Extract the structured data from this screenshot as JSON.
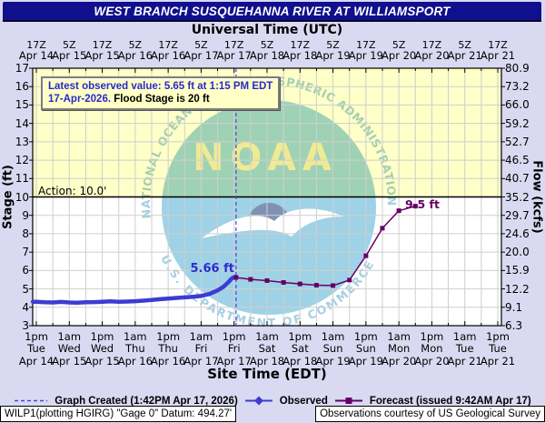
{
  "header": {
    "title": "WEST BRANCH SUSQUEHANNA RIVER AT WILLIAMSPORT"
  },
  "top_axis": {
    "title": "Universal Time (UTC)"
  },
  "bottom_axis": {
    "title": "Site Time (EDT)"
  },
  "y_left_title": "Stage (ft)",
  "y_right_title": "Flow (kcfs)",
  "callout": {
    "line1": "Latest observed value: 5.65 ft at 1:15 PM EDT",
    "date": "17-Apr-2026.",
    "flood_note": "Flood Stage is 20 ft"
  },
  "action_label": "Action: 10.0'",
  "observed_peak_label": "5.66 ft",
  "forecast_peak_label": "9.5 ft",
  "legend": {
    "graph_created": "Graph Created (1:42PM Apr 17, 2026)",
    "observed": "Observed",
    "forecast": "Forecast (issued 9:42AM Apr 17)"
  },
  "footer": {
    "station": "WILP1(plotting HGIRG) \"Gage 0\" Datum: 494.27'",
    "courtesy": "Observations courtesy of US Geological Survey"
  },
  "watermark": {
    "ring_top": "NATIONAL OCEANIC AND ATMOSPHERIC ADMINISTRATION",
    "acronym": "NOAA",
    "ring_bottom": "U.S. DEPARTMENT OF COMMERCE"
  },
  "chart_data": {
    "type": "line",
    "title": "WEST BRANCH SUSQUEHANNA RIVER AT WILLIAMSPORT",
    "x_total_hours": 168,
    "x_hours_per_tick": 12,
    "x_ticks": {
      "utc_time": [
        "17Z",
        "5Z",
        "17Z",
        "5Z",
        "17Z",
        "5Z",
        "17Z",
        "5Z",
        "17Z",
        "5Z",
        "17Z",
        "5Z",
        "17Z",
        "5Z",
        "17Z"
      ],
      "utc_date": [
        "Apr 14",
        "Apr 15",
        "Apr 15",
        "Apr 16",
        "Apr 16",
        "Apr 17",
        "Apr 17",
        "Apr 18",
        "Apr 18",
        "Apr 19",
        "Apr 19",
        "Apr 20",
        "Apr 20",
        "Apr 21",
        "Apr 21"
      ],
      "site_time": [
        "1pm",
        "1am",
        "1pm",
        "1am",
        "1pm",
        "1am",
        "1pm",
        "1am",
        "1pm",
        "1am",
        "1pm",
        "1am",
        "1pm",
        "1am",
        "1pm"
      ],
      "site_day": [
        "Tue",
        "Wed",
        "Wed",
        "Thu",
        "Thu",
        "Fri",
        "Fri",
        "Sat",
        "Sat",
        "Sun",
        "Sun",
        "Mon",
        "Mon",
        "Tue",
        "Tue"
      ],
      "site_date": [
        "Apr 14",
        "Apr 15",
        "Apr 15",
        "Apr 16",
        "Apr 16",
        "Apr 17",
        "Apr 17",
        "Apr 18",
        "Apr 18",
        "Apr 19",
        "Apr 19",
        "Apr 20",
        "Apr 20",
        "Apr 21",
        "Apr 21"
      ]
    },
    "y_left": {
      "label": "Stage (ft)",
      "min": 3,
      "max": 17,
      "step": 1
    },
    "y_right": {
      "label": "Flow (kcfs)",
      "tick_labels": [
        "80.9",
        "73.2",
        "66.0",
        "59.2",
        "52.7",
        "46.5",
        "40.7",
        "35.2",
        "29.7",
        "24.6",
        "20.0",
        "15.9",
        "12.2",
        "9.1",
        "6.3"
      ]
    },
    "action_stage": 10.0,
    "flood_stage_ft": 20,
    "latest_observed_ft": 5.65,
    "graph_created_hour": 72.7,
    "grid": {
      "x_minor_hours": 6,
      "y_step": 1
    },
    "series": [
      {
        "name": "Observed",
        "color": "#3c3cd2",
        "marker": "diamond",
        "points": [
          [
            -1.3,
            4.3
          ],
          [
            0,
            4.3
          ],
          [
            3,
            4.27
          ],
          [
            6,
            4.26
          ],
          [
            9,
            4.29
          ],
          [
            12,
            4.26
          ],
          [
            15,
            4.25
          ],
          [
            18,
            4.27
          ],
          [
            21,
            4.28
          ],
          [
            24,
            4.3
          ],
          [
            27,
            4.32
          ],
          [
            30,
            4.3
          ],
          [
            33,
            4.31
          ],
          [
            36,
            4.33
          ],
          [
            39,
            4.36
          ],
          [
            42,
            4.4
          ],
          [
            45,
            4.44
          ],
          [
            48,
            4.47
          ],
          [
            51,
            4.51
          ],
          [
            54,
            4.54
          ],
          [
            57,
            4.57
          ],
          [
            60,
            4.62
          ],
          [
            63,
            4.72
          ],
          [
            66,
            4.92
          ],
          [
            68,
            5.1
          ],
          [
            70,
            5.38
          ],
          [
            71,
            5.55
          ],
          [
            72,
            5.64
          ],
          [
            72.7,
            5.66
          ]
        ]
      },
      {
        "name": "Forecast",
        "color": "#660066",
        "marker": "square",
        "points": [
          [
            72.7,
            5.62
          ],
          [
            78,
            5.52
          ],
          [
            84,
            5.45
          ],
          [
            90,
            5.35
          ],
          [
            96,
            5.27
          ],
          [
            102,
            5.2
          ],
          [
            108,
            5.18
          ],
          [
            114,
            5.48
          ],
          [
            120,
            6.8
          ],
          [
            126,
            8.3
          ],
          [
            132,
            9.25
          ],
          [
            138,
            9.5
          ]
        ]
      }
    ],
    "colors": {
      "observed": "#3c3cd2",
      "forecast": "#660066",
      "action_zone": "#ffffc8",
      "grid": "#cfcfcf",
      "created_line": "#4545de",
      "callout_text": "#2929cf"
    }
  }
}
